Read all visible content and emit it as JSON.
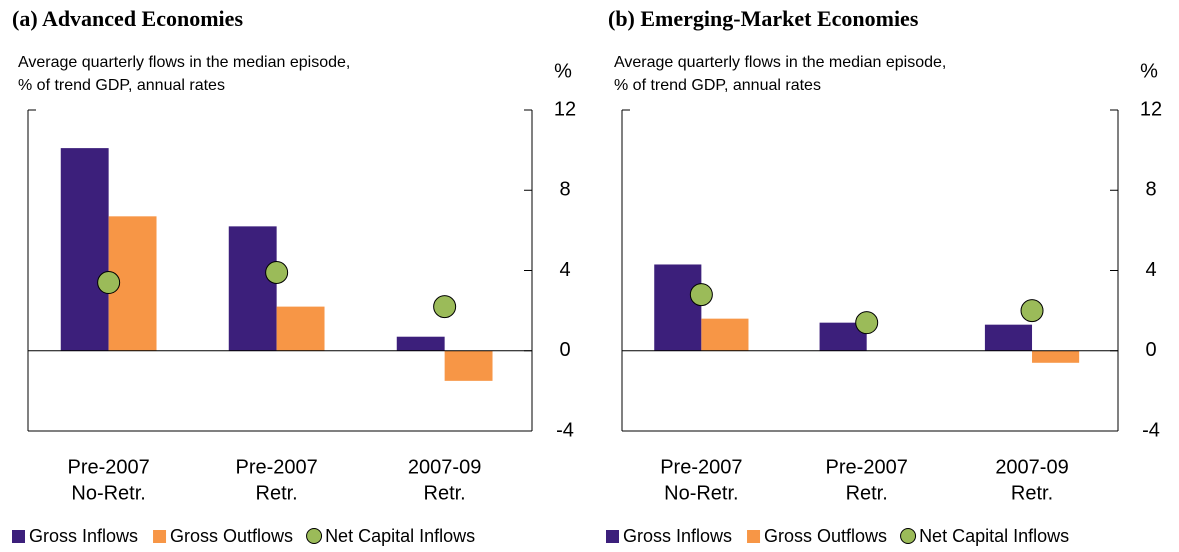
{
  "chart_data": [
    {
      "type": "bar",
      "title": "(a) Advanced Economies",
      "subtitle": [
        "Average quarterly flows in the median episode,",
        "% of trend GDP, annual rates"
      ],
      "y_label": "%",
      "categories": [
        [
          "Pre-2007",
          "No-Retr."
        ],
        [
          "Pre-2007",
          "Retr."
        ],
        [
          "2007-09",
          "Retr."
        ]
      ],
      "series": [
        {
          "name": "Gross Inflows",
          "color": "#3c1f7b",
          "values": [
            10.1,
            6.2,
            0.7
          ]
        },
        {
          "name": "Gross Outflows",
          "color": "#f79646",
          "values": [
            6.7,
            2.2,
            -1.5
          ]
        },
        {
          "name": "Net Capital Inflows",
          "color": "#9bbb59",
          "marker": "circle",
          "values": [
            3.4,
            3.9,
            2.2
          ]
        }
      ],
      "ylim": [
        -4,
        12
      ],
      "yticks": [
        -4,
        0,
        4,
        8,
        12
      ],
      "legend": "bottom"
    },
    {
      "type": "bar",
      "title": "(b) Emerging-Market Economies",
      "subtitle": [
        "Average quarterly flows in the median episode,",
        "% of trend GDP, annual rates"
      ],
      "y_label": "%",
      "categories": [
        [
          "Pre-2007",
          "No-Retr."
        ],
        [
          "Pre-2007",
          "Retr."
        ],
        [
          "2007-09",
          "Retr."
        ]
      ],
      "series": [
        {
          "name": "Gross Inflows",
          "color": "#3c1f7b",
          "values": [
            4.3,
            1.4,
            1.3
          ]
        },
        {
          "name": "Gross Outflows",
          "color": "#f79646",
          "values": [
            1.6,
            0,
            -0.6
          ]
        },
        {
          "name": "Net Capital Inflows",
          "color": "#9bbb59",
          "marker": "circle",
          "values": [
            2.8,
            1.4,
            2.0
          ]
        }
      ],
      "ylim": [
        -4,
        12
      ],
      "yticks": [
        -4,
        0,
        4,
        8,
        12
      ],
      "legend": "bottom"
    }
  ]
}
